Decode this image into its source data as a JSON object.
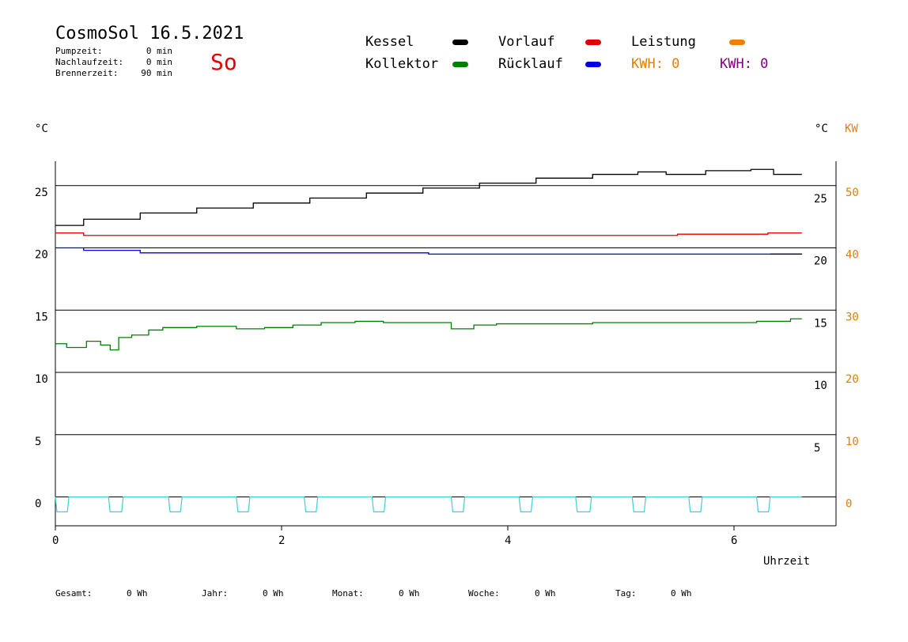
{
  "header": {
    "title": "CosmoSol 16.5.2021",
    "day": "So",
    "stats": [
      {
        "label": "Pumpzeit:",
        "value": "0 min"
      },
      {
        "label": "Nachlaufzeit:",
        "value": "0 min"
      },
      {
        "label": "Brennerzeit:",
        "value": "90 min"
      }
    ]
  },
  "legend": {
    "items": [
      {
        "label": "Kessel",
        "color": "#000000"
      },
      {
        "label": "Vorlauf",
        "color": "#e00000"
      },
      {
        "label": "Leistung",
        "color": "#f08000"
      },
      {
        "label": "Kollektor",
        "color": "#008000"
      },
      {
        "label": "Rücklauf",
        "color": "#0000e0"
      }
    ],
    "kwh_left": {
      "text": "KWH: 0",
      "color": "#e08000"
    },
    "kwh_right": {
      "text": "KWH: 0",
      "color": "#800080"
    }
  },
  "footer": [
    {
      "label": "Gesamt:",
      "value": "0 Wh"
    },
    {
      "label": "Jahr:",
      "value": "0 Wh"
    },
    {
      "label": "Monat:",
      "value": "0 Wh"
    },
    {
      "label": "Woche:",
      "value": "0 Wh"
    },
    {
      "label": "Tag:",
      "value": "0 Wh"
    }
  ],
  "chart_data": {
    "type": "line",
    "xlabel": "Uhrzeit",
    "ylabel_left": "°C",
    "ylabel_right": "°C",
    "ylabel_right2": "KW",
    "xlim": [
      0,
      7
    ],
    "ylim": [
      -2.5,
      27
    ],
    "xticks": [
      0,
      2,
      4,
      6
    ],
    "yticks_left": [
      0,
      5,
      10,
      15,
      20,
      25
    ],
    "yticks_right": [
      5,
      10,
      15,
      20,
      25
    ],
    "yticks_kw": [
      0,
      10,
      20,
      30,
      40,
      50
    ],
    "grid": "horizontal",
    "series": [
      {
        "name": "Kessel",
        "color": "#000000",
        "x": [
          0,
          0.5,
          1.0,
          1.5,
          2.0,
          2.5,
          3.0,
          3.5,
          4.0,
          4.5,
          5.0,
          5.3,
          5.5,
          6.0,
          6.3,
          6.4,
          6.6
        ],
        "y": [
          21.8,
          22.3,
          22.8,
          23.2,
          23.6,
          24.0,
          24.4,
          24.8,
          25.2,
          25.6,
          25.9,
          26.1,
          25.9,
          26.2,
          26.3,
          25.9,
          25.9
        ]
      },
      {
        "name": "Vorlauf",
        "color": "#e00000",
        "x": [
          0,
          0.5,
          1.0,
          2.0,
          3.0,
          4.0,
          5.0,
          6.0,
          6.6
        ],
        "y": [
          21.2,
          21.0,
          21.0,
          21.0,
          21.0,
          21.0,
          21.0,
          21.1,
          21.2
        ]
      },
      {
        "name": "Rücklauf",
        "color": "#0000e0",
        "x": [
          0,
          0.5,
          1.0,
          2.0,
          3.0,
          3.6,
          4.0,
          5.0,
          6.0,
          6.6
        ],
        "y": [
          20.0,
          19.8,
          19.6,
          19.6,
          19.6,
          19.5,
          19.5,
          19.5,
          19.5,
          19.5
        ],
        "end_color": "#000000"
      },
      {
        "name": "Kollektor",
        "color": "#008000",
        "x": [
          0,
          0.2,
          0.35,
          0.45,
          0.52,
          0.6,
          0.75,
          0.9,
          1.0,
          1.5,
          1.7,
          2.0,
          2.2,
          2.5,
          2.8,
          3.0,
          3.4,
          3.6,
          3.8,
          4.0,
          4.5,
          5.0,
          5.5,
          6.0,
          6.4,
          6.6
        ],
        "y": [
          12.3,
          12.0,
          12.5,
          12.2,
          11.8,
          12.8,
          13.0,
          13.4,
          13.6,
          13.7,
          13.5,
          13.6,
          13.8,
          14.0,
          14.1,
          14.0,
          14.0,
          13.5,
          13.8,
          13.9,
          13.9,
          14.0,
          14.0,
          14.0,
          14.1,
          14.3
        ]
      },
      {
        "name": "Leistung",
        "color": "#40d0d0",
        "pulses": [
          [
            0.0,
            0.12
          ],
          [
            0.47,
            0.6
          ],
          [
            1.0,
            1.12
          ],
          [
            1.6,
            1.72
          ],
          [
            2.2,
            2.32
          ],
          [
            2.8,
            2.92
          ],
          [
            3.5,
            3.62
          ],
          [
            4.1,
            4.22
          ],
          [
            4.6,
            4.74
          ],
          [
            5.1,
            5.22
          ],
          [
            5.6,
            5.72
          ],
          [
            6.2,
            6.32
          ]
        ],
        "baseline": 0,
        "low": -1.2
      }
    ]
  }
}
